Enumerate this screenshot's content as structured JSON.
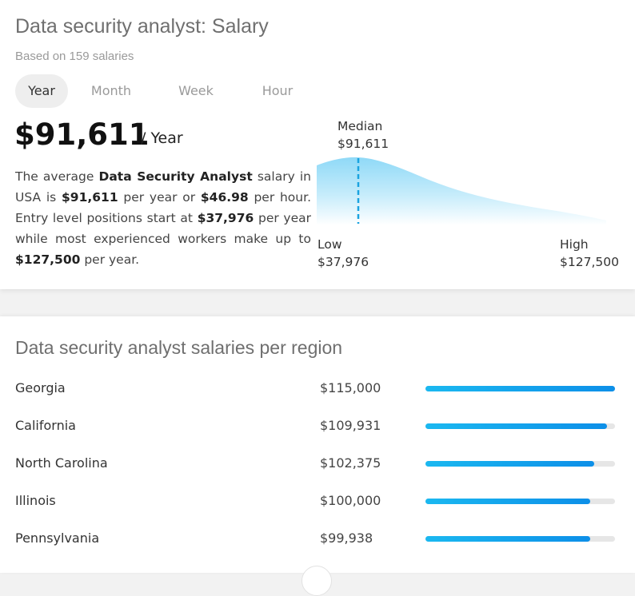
{
  "header": {
    "title": "Data security analyst: Salary",
    "subtitle": "Based on 159 salaries"
  },
  "tabs": [
    {
      "label": "Year",
      "active": true
    },
    {
      "label": "Month",
      "active": false
    },
    {
      "label": "Week",
      "active": false
    },
    {
      "label": "Hour",
      "active": false
    }
  ],
  "summary": {
    "amount": "$91,611",
    "period": "/ Year",
    "description": {
      "p1": "The average ",
      "job": "Data Security Analyst",
      "p2": " salary in USA is ",
      "yearly": "$91,611",
      "p3": " per year or ",
      "hourly": "$46.98",
      "p4": " per hour. Entry level positions start at ",
      "entry": "$37,976",
      "p5": " per year while most experienced workers make up to ",
      "top": "$127,500",
      "p6": " per year."
    }
  },
  "distribution": {
    "median_label": "Median",
    "median_value": "$91,611",
    "low_label": "Low",
    "low_value": "$37,976",
    "high_label": "High",
    "high_value": "$127,500"
  },
  "regions": {
    "title": "Data security analyst salaries per region",
    "items": [
      {
        "name": "Georgia",
        "salary": "$115,000",
        "fill": 1.0
      },
      {
        "name": "California",
        "salary": "$109,931",
        "fill": 0.956
      },
      {
        "name": "North Carolina",
        "salary": "$102,375",
        "fill": 0.89
      },
      {
        "name": "Illinois",
        "salary": "$100,000",
        "fill": 0.87
      },
      {
        "name": "Pennsylvania",
        "salary": "$99,938",
        "fill": 0.869
      }
    ]
  },
  "colors": {
    "accent": "#0d8fe8",
    "accent_light": "#1bb8f0",
    "curve_fill": "#9fdff8"
  }
}
